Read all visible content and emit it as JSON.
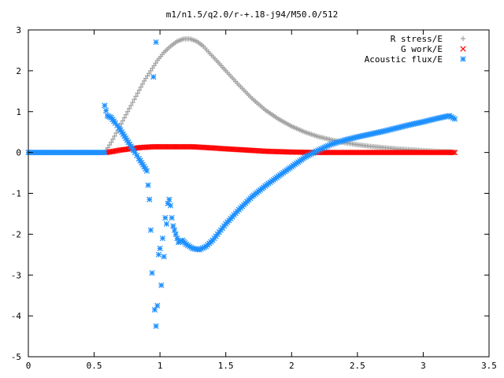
{
  "chart_data": {
    "type": "scatter",
    "title": "m1/n1.5/q2.0/r-+.18-j94/M50.0/512",
    "xlabel": "",
    "ylabel": "",
    "xlim": [
      0,
      3.5
    ],
    "ylim": [
      -5,
      3
    ],
    "xticks": [
      0,
      0.5,
      1,
      1.5,
      2,
      2.5,
      3,
      3.5
    ],
    "xtick_labels": [
      "0",
      "0.5",
      "1",
      "1.5",
      "2",
      "2.5",
      "3",
      "3.5"
    ],
    "yticks": [
      -5,
      -4,
      -3,
      -2,
      -1,
      0,
      1,
      2,
      3
    ],
    "ytick_labels": [
      "-5",
      "-4",
      "-3",
      "-2",
      "-1",
      "0",
      "1",
      "2",
      "3"
    ],
    "grid": false,
    "legend_position": "top-right",
    "series": [
      {
        "name": "R stress/E",
        "marker": "plus",
        "color": "#a0a0a0",
        "x": [
          0.59,
          0.63,
          0.68,
          0.73,
          0.78,
          0.83,
          0.88,
          0.93,
          0.98,
          1.03,
          1.08,
          1.13,
          1.18,
          1.23,
          1.28,
          1.33,
          1.38,
          1.43,
          1.5,
          1.6,
          1.7,
          1.8,
          1.9,
          2.0,
          2.1,
          2.2,
          2.3,
          2.4,
          2.5,
          2.6,
          2.7,
          2.8,
          2.9,
          3.0,
          3.1,
          3.2,
          3.24
        ],
        "y": [
          0.05,
          0.25,
          0.55,
          0.85,
          1.15,
          1.45,
          1.75,
          2.0,
          2.25,
          2.45,
          2.6,
          2.72,
          2.78,
          2.78,
          2.72,
          2.6,
          2.42,
          2.25,
          2.0,
          1.65,
          1.32,
          1.04,
          0.82,
          0.64,
          0.5,
          0.39,
          0.31,
          0.24,
          0.19,
          0.15,
          0.12,
          0.09,
          0.07,
          0.05,
          0.03,
          0.02,
          0.01
        ]
      },
      {
        "name": "G work/E",
        "marker": "cross",
        "color": "#ff0000",
        "x": [
          0.59,
          0.65,
          0.7,
          0.75,
          0.8,
          0.85,
          0.9,
          0.95,
          1.0,
          1.05,
          1.1,
          1.15,
          1.2,
          1.25,
          1.3,
          1.35,
          1.4,
          1.45,
          1.5,
          1.6,
          1.7,
          1.8,
          1.9,
          2.0,
          2.2,
          2.4,
          2.6,
          2.8,
          3.0,
          3.2,
          3.24
        ],
        "y": [
          0.0,
          0.03,
          0.06,
          0.08,
          0.1,
          0.12,
          0.13,
          0.14,
          0.14,
          0.14,
          0.14,
          0.14,
          0.14,
          0.14,
          0.13,
          0.12,
          0.11,
          0.1,
          0.09,
          0.07,
          0.05,
          0.03,
          0.02,
          0.01,
          0.0,
          0.0,
          0.0,
          0.0,
          0.0,
          0.0,
          0.0
        ]
      },
      {
        "name": "Acoustic flux/E",
        "marker": "star",
        "color": "#1e90ff",
        "x": [
          0.0,
          0.1,
          0.2,
          0.3,
          0.4,
          0.5,
          0.58,
          0.58,
          0.6,
          0.63,
          0.66,
          0.69,
          0.72,
          0.75,
          0.78,
          0.81,
          0.84,
          0.87,
          0.9,
          0.92,
          0.93,
          0.94,
          0.95,
          0.96,
          0.97,
          0.97,
          0.98,
          0.99,
          1.0,
          1.01,
          1.02,
          1.03,
          1.04,
          1.05,
          1.06,
          1.07,
          1.08,
          1.09,
          1.1,
          1.12,
          1.14,
          1.17,
          1.2,
          1.25,
          1.3,
          1.35,
          1.4,
          1.45,
          1.5,
          1.6,
          1.7,
          1.8,
          1.9,
          2.0,
          2.1,
          2.2,
          2.3,
          2.4,
          2.5,
          2.6,
          2.7,
          2.8,
          2.9,
          3.0,
          3.1,
          3.2,
          3.24
        ],
        "y": [
          0.0,
          0.0,
          0.0,
          0.0,
          0.0,
          0.0,
          0.0,
          1.15,
          0.9,
          0.85,
          0.72,
          0.6,
          0.45,
          0.3,
          0.15,
          0.0,
          -0.15,
          -0.3,
          -0.45,
          -1.15,
          -1.9,
          -2.95,
          1.85,
          -3.85,
          2.7,
          -4.25,
          -3.75,
          -2.5,
          -2.35,
          -3.25,
          -2.1,
          -2.55,
          -1.6,
          -1.75,
          -1.25,
          -1.15,
          -1.3,
          -1.6,
          -1.8,
          -2.0,
          -2.2,
          -2.15,
          -2.25,
          -2.35,
          -2.38,
          -2.3,
          -2.15,
          -1.95,
          -1.75,
          -1.4,
          -1.08,
          -0.82,
          -0.58,
          -0.35,
          -0.12,
          0.05,
          0.2,
          0.3,
          0.38,
          0.45,
          0.52,
          0.6,
          0.68,
          0.75,
          0.83,
          0.9,
          0.82
        ]
      }
    ]
  }
}
